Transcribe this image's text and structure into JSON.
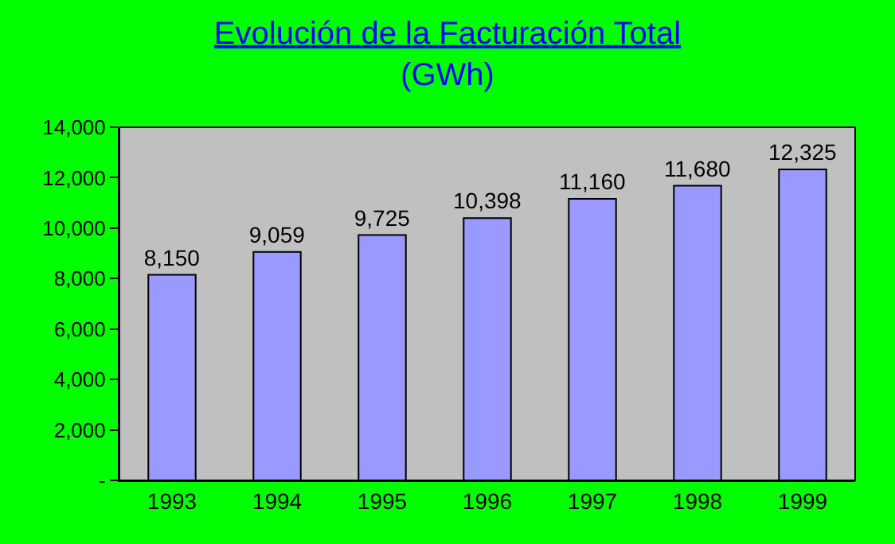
{
  "chart_data": {
    "type": "bar",
    "title": "Evolución de la Facturación Total",
    "subtitle": "(GWh)",
    "categories": [
      "1993",
      "1994",
      "1995",
      "1996",
      "1997",
      "1998",
      "1999"
    ],
    "values": [
      8150,
      9059,
      9725,
      10398,
      11160,
      11680,
      12325
    ],
    "value_labels": [
      "8,150",
      "9,059",
      "9,725",
      "10,398",
      "11,160",
      "11,680",
      "12,325"
    ],
    "color": "#9999ff",
    "ylim": [
      0,
      14000
    ],
    "yticks": [
      {
        "value": 0,
        "label": "-"
      },
      {
        "value": 2000,
        "label": "2,000"
      },
      {
        "value": 4000,
        "label": "4,000"
      },
      {
        "value": 6000,
        "label": "6,000"
      },
      {
        "value": 8000,
        "label": "8,000"
      },
      {
        "value": 10000,
        "label": "10,000"
      },
      {
        "value": 12000,
        "label": "12,000"
      },
      {
        "value": 14000,
        "label": "14,000"
      }
    ],
    "grid": false
  }
}
